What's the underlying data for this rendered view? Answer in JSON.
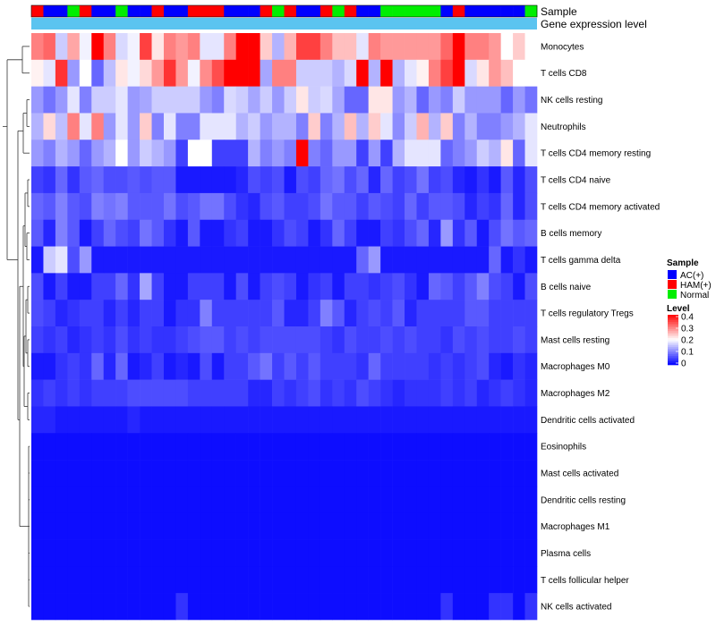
{
  "chart_data": {
    "type": "heatmap",
    "annotation_labels": [
      "Sample",
      "Gene expression level"
    ],
    "sample_groups": [
      "HAM(+)",
      "AC(+)",
      "AC(+)",
      "Normal",
      "HAM(+)",
      "AC(+)",
      "AC(+)",
      "Normal",
      "AC(+)",
      "AC(+)",
      "HAM(+)",
      "AC(+)",
      "AC(+)",
      "HAM(+)",
      "HAM(+)",
      "HAM(+)",
      "AC(+)",
      "AC(+)",
      "AC(+)",
      "HAM(+)",
      "Normal",
      "HAM(+)",
      "AC(+)",
      "AC(+)",
      "HAM(+)",
      "Normal",
      "HAM(+)",
      "AC(+)",
      "AC(+)",
      "Normal",
      "Normal",
      "Normal",
      "Normal",
      "Normal",
      "AC(+)",
      "HAM(+)",
      "AC(+)",
      "AC(+)",
      "AC(+)",
      "AC(+)",
      "AC(+)",
      "Normal"
    ],
    "rows": [
      "Monocytes",
      "T cells CD8",
      "NK cells resting",
      "Neutrophils",
      "T cells CD4 memory resting",
      "T cells CD4 naive",
      "T cells CD4 memory activated",
      "B cells memory",
      "T cells gamma delta",
      "B cells naive",
      "T cells regulatory  Tregs",
      "Mast cells resting",
      "Macrophages M0",
      "Macrophages M2",
      "Dendritic cells activated",
      "Eosinophils",
      "Mast cells activated",
      "Dendritic cells resting",
      "Macrophages M1",
      "Plasma cells",
      "T cells follicular helper",
      "NK cells activated"
    ],
    "values": [
      [
        0.3,
        0.32,
        0.16,
        0.27,
        0.19,
        0.4,
        0.3,
        0.17,
        0.19,
        0.35,
        0.22,
        0.3,
        0.28,
        0.3,
        0.18,
        0.18,
        0.3,
        0.4,
        0.4,
        0.24,
        0.14,
        0.26,
        0.35,
        0.35,
        0.3,
        0.25,
        0.25,
        0.18,
        0.3,
        0.28,
        0.28,
        0.28,
        0.28,
        0.28,
        0.32,
        0.4,
        0.3,
        0.3,
        0.28,
        0.2,
        0.24,
        0.2
      ],
      [
        0.21,
        0.18,
        0.36,
        0.12,
        0.2,
        0.08,
        0.15,
        0.22,
        0.19,
        0.23,
        0.28,
        0.36,
        0.28,
        0.19,
        0.29,
        0.34,
        0.4,
        0.4,
        0.4,
        0.13,
        0.3,
        0.3,
        0.16,
        0.16,
        0.16,
        0.14,
        0.17,
        0.4,
        0.14,
        0.4,
        0.14,
        0.18,
        0.21,
        0.3,
        0.35,
        0.4,
        0.17,
        0.22,
        0.28,
        0.25,
        0.2,
        0.2
      ],
      [
        0.12,
        0.09,
        0.12,
        0.18,
        0.1,
        0.16,
        0.16,
        0.18,
        0.12,
        0.13,
        0.16,
        0.16,
        0.16,
        0.16,
        0.12,
        0.1,
        0.17,
        0.16,
        0.13,
        0.16,
        0.12,
        0.16,
        0.22,
        0.16,
        0.17,
        0.13,
        0.08,
        0.08,
        0.22,
        0.22,
        0.12,
        0.14,
        0.08,
        0.12,
        0.1,
        0.16,
        0.12,
        0.12,
        0.12,
        0.08,
        0.12,
        0.09
      ],
      [
        0.14,
        0.23,
        0.15,
        0.3,
        0.18,
        0.3,
        0.12,
        0.18,
        0.12,
        0.24,
        0.1,
        0.18,
        0.1,
        0.1,
        0.18,
        0.18,
        0.18,
        0.14,
        0.16,
        0.12,
        0.14,
        0.14,
        0.1,
        0.24,
        0.1,
        0.14,
        0.25,
        0.14,
        0.24,
        0.18,
        0.11,
        0.16,
        0.26,
        0.14,
        0.24,
        0.1,
        0.14,
        0.1,
        0.1,
        0.12,
        0.14,
        0.18
      ],
      [
        0.12,
        0.1,
        0.14,
        0.12,
        0.08,
        0.12,
        0.14,
        0.2,
        0.12,
        0.16,
        0.14,
        0.12,
        0.05,
        0.2,
        0.2,
        0.05,
        0.05,
        0.05,
        0.14,
        0.1,
        0.12,
        0.1,
        0.4,
        0.1,
        0.08,
        0.12,
        0.12,
        0.05,
        0.12,
        0.05,
        0.14,
        0.18,
        0.18,
        0.18,
        0.08,
        0.1,
        0.12,
        0.16,
        0.14,
        0.22,
        0.08,
        0.18
      ],
      [
        0.05,
        0.04,
        0.08,
        0.04,
        0.07,
        0.08,
        0.06,
        0.06,
        0.07,
        0.06,
        0.07,
        0.07,
        0.02,
        0.02,
        0.02,
        0.02,
        0.02,
        0.03,
        0.06,
        0.05,
        0.06,
        0.02,
        0.06,
        0.05,
        0.08,
        0.09,
        0.06,
        0.08,
        0.03,
        0.08,
        0.05,
        0.06,
        0.09,
        0.05,
        0.06,
        0.03,
        0.02,
        0.04,
        0.02,
        0.07,
        0.03,
        0.06
      ],
      [
        0.08,
        0.07,
        0.1,
        0.07,
        0.06,
        0.1,
        0.09,
        0.1,
        0.07,
        0.07,
        0.07,
        0.09,
        0.06,
        0.07,
        0.09,
        0.09,
        0.06,
        0.04,
        0.03,
        0.06,
        0.07,
        0.05,
        0.05,
        0.06,
        0.09,
        0.07,
        0.07,
        0.05,
        0.07,
        0.06,
        0.05,
        0.08,
        0.05,
        0.07,
        0.07,
        0.06,
        0.03,
        0.05,
        0.04,
        0.08,
        0.03,
        0.06
      ],
      [
        0.07,
        0.03,
        0.1,
        0.07,
        0.02,
        0.05,
        0.08,
        0.06,
        0.05,
        0.09,
        0.07,
        0.04,
        0.02,
        0.07,
        0.02,
        0.02,
        0.04,
        0.05,
        0.02,
        0.02,
        0.04,
        0.06,
        0.05,
        0.02,
        0.04,
        0.08,
        0.05,
        0.02,
        0.02,
        0.05,
        0.04,
        0.06,
        0.08,
        0.03,
        0.12,
        0.04,
        0.07,
        0.02,
        0.06,
        0.09,
        0.07,
        0.08
      ],
      [
        0.02,
        0.16,
        0.18,
        0.06,
        0.12,
        0.02,
        0.02,
        0.02,
        0.02,
        0.02,
        0.02,
        0.02,
        0.02,
        0.02,
        0.02,
        0.02,
        0.02,
        0.02,
        0.02,
        0.02,
        0.02,
        0.02,
        0.02,
        0.02,
        0.02,
        0.02,
        0.02,
        0.08,
        0.12,
        0.02,
        0.02,
        0.02,
        0.02,
        0.02,
        0.02,
        0.02,
        0.02,
        0.02,
        0.08,
        0.02,
        0.04,
        0.02
      ],
      [
        0.06,
        0.02,
        0.05,
        0.02,
        0.02,
        0.05,
        0.05,
        0.08,
        0.04,
        0.13,
        0.05,
        0.02,
        0.02,
        0.05,
        0.05,
        0.05,
        0.02,
        0.06,
        0.02,
        0.05,
        0.06,
        0.05,
        0.02,
        0.04,
        0.05,
        0.02,
        0.05,
        0.05,
        0.04,
        0.05,
        0.06,
        0.04,
        0.02,
        0.08,
        0.07,
        0.05,
        0.07,
        0.1,
        0.06,
        0.05,
        0.02,
        0.06
      ],
      [
        0.06,
        0.05,
        0.03,
        0.04,
        0.05,
        0.05,
        0.03,
        0.05,
        0.03,
        0.05,
        0.05,
        0.02,
        0.04,
        0.04,
        0.1,
        0.05,
        0.05,
        0.05,
        0.05,
        0.05,
        0.07,
        0.03,
        0.03,
        0.05,
        0.1,
        0.07,
        0.03,
        0.05,
        0.06,
        0.05,
        0.07,
        0.03,
        0.05,
        0.05,
        0.05,
        0.05,
        0.07,
        0.07,
        0.05,
        0.05,
        0.05,
        0.05
      ],
      [
        0.05,
        0.04,
        0.05,
        0.03,
        0.04,
        0.05,
        0.04,
        0.06,
        0.04,
        0.05,
        0.04,
        0.04,
        0.05,
        0.06,
        0.07,
        0.07,
        0.05,
        0.06,
        0.05,
        0.06,
        0.06,
        0.06,
        0.06,
        0.06,
        0.05,
        0.04,
        0.06,
        0.05,
        0.05,
        0.06,
        0.05,
        0.06,
        0.05,
        0.05,
        0.04,
        0.06,
        0.05,
        0.06,
        0.05,
        0.05,
        0.06,
        0.05
      ],
      [
        0.02,
        0.02,
        0.04,
        0.05,
        0.04,
        0.08,
        0.03,
        0.08,
        0.02,
        0.03,
        0.05,
        0.02,
        0.03,
        0.02,
        0.06,
        0.02,
        0.05,
        0.05,
        0.07,
        0.09,
        0.05,
        0.07,
        0.05,
        0.07,
        0.05,
        0.05,
        0.05,
        0.04,
        0.08,
        0.05,
        0.05,
        0.05,
        0.05,
        0.04,
        0.05,
        0.04,
        0.05,
        0.06,
        0.03,
        0.02,
        0.04,
        0.03
      ],
      [
        0.04,
        0.05,
        0.04,
        0.05,
        0.04,
        0.05,
        0.05,
        0.05,
        0.06,
        0.06,
        0.06,
        0.06,
        0.06,
        0.05,
        0.05,
        0.05,
        0.05,
        0.05,
        0.03,
        0.03,
        0.05,
        0.04,
        0.05,
        0.06,
        0.04,
        0.05,
        0.04,
        0.06,
        0.05,
        0.04,
        0.03,
        0.04,
        0.04,
        0.04,
        0.05,
        0.04,
        0.05,
        0.03,
        0.04,
        0.05,
        0.04,
        0.03
      ],
      [
        0.03,
        0.03,
        0.02,
        0.02,
        0.02,
        0.02,
        0.02,
        0.02,
        0.03,
        0.02,
        0.02,
        0.02,
        0.02,
        0.02,
        0.02,
        0.02,
        0.02,
        0.02,
        0.02,
        0.02,
        0.02,
        0.02,
        0.02,
        0.02,
        0.02,
        0.02,
        0.02,
        0.02,
        0.02,
        0.02,
        0.02,
        0.02,
        0.02,
        0.02,
        0.02,
        0.02,
        0.02,
        0.02,
        0.02,
        0.02,
        0.02,
        0.02
      ],
      [
        0.01,
        0.01,
        0.01,
        0.01,
        0.01,
        0.01,
        0.01,
        0.01,
        0.01,
        0.01,
        0.01,
        0.01,
        0.01,
        0.01,
        0.01,
        0.01,
        0.01,
        0.01,
        0.01,
        0.01,
        0.01,
        0.01,
        0.01,
        0.01,
        0.01,
        0.01,
        0.01,
        0.01,
        0.01,
        0.01,
        0.01,
        0.01,
        0.01,
        0.01,
        0.01,
        0.01,
        0.01,
        0.01,
        0.01,
        0.01,
        0.01,
        0.01
      ],
      [
        0.01,
        0.01,
        0.01,
        0.01,
        0.01,
        0.01,
        0.01,
        0.01,
        0.01,
        0.01,
        0.01,
        0.01,
        0.01,
        0.01,
        0.01,
        0.01,
        0.01,
        0.01,
        0.01,
        0.01,
        0.01,
        0.01,
        0.01,
        0.01,
        0.01,
        0.01,
        0.01,
        0.01,
        0.01,
        0.01,
        0.01,
        0.01,
        0.01,
        0.01,
        0.01,
        0.01,
        0.01,
        0.01,
        0.01,
        0.01,
        0.01,
        0.01
      ],
      [
        0.01,
        0.01,
        0.01,
        0.01,
        0.01,
        0.01,
        0.01,
        0.01,
        0.01,
        0.01,
        0.01,
        0.01,
        0.01,
        0.01,
        0.01,
        0.01,
        0.01,
        0.01,
        0.01,
        0.01,
        0.01,
        0.01,
        0.01,
        0.01,
        0.01,
        0.01,
        0.01,
        0.01,
        0.01,
        0.01,
        0.01,
        0.01,
        0.01,
        0.01,
        0.01,
        0.01,
        0.01,
        0.01,
        0.01,
        0.01,
        0.01,
        0.01
      ],
      [
        0.01,
        0.01,
        0.01,
        0.01,
        0.01,
        0.01,
        0.01,
        0.01,
        0.01,
        0.01,
        0.01,
        0.01,
        0.01,
        0.01,
        0.01,
        0.01,
        0.01,
        0.01,
        0.01,
        0.01,
        0.01,
        0.01,
        0.01,
        0.01,
        0.01,
        0.01,
        0.01,
        0.01,
        0.01,
        0.01,
        0.01,
        0.01,
        0.01,
        0.01,
        0.01,
        0.01,
        0.01,
        0.01,
        0.01,
        0.01,
        0.01,
        0.01
      ],
      [
        0.01,
        0.01,
        0.01,
        0.01,
        0.01,
        0.01,
        0.01,
        0.01,
        0.01,
        0.01,
        0.01,
        0.01,
        0.01,
        0.01,
        0.01,
        0.01,
        0.01,
        0.01,
        0.01,
        0.01,
        0.01,
        0.01,
        0.01,
        0.01,
        0.01,
        0.01,
        0.01,
        0.01,
        0.01,
        0.01,
        0.01,
        0.01,
        0.01,
        0.01,
        0.01,
        0.01,
        0.01,
        0.01,
        0.01,
        0.01,
        0.01,
        0.01
      ],
      [
        0.01,
        0.01,
        0.01,
        0.01,
        0.01,
        0.01,
        0.01,
        0.01,
        0.01,
        0.01,
        0.01,
        0.01,
        0.01,
        0.01,
        0.01,
        0.01,
        0.01,
        0.01,
        0.01,
        0.01,
        0.01,
        0.01,
        0.01,
        0.01,
        0.01,
        0.01,
        0.01,
        0.01,
        0.01,
        0.01,
        0.01,
        0.01,
        0.01,
        0.01,
        0.01,
        0.01,
        0.01,
        0.01,
        0.01,
        0.01,
        0.01,
        0.01
      ],
      [
        0.01,
        0.01,
        0.01,
        0.01,
        0.01,
        0.01,
        0.01,
        0.01,
        0.01,
        0.01,
        0.01,
        0.01,
        0.04,
        0.01,
        0.01,
        0.01,
        0.01,
        0.01,
        0.01,
        0.01,
        0.01,
        0.01,
        0.01,
        0.01,
        0.01,
        0.01,
        0.01,
        0.01,
        0.01,
        0.01,
        0.01,
        0.01,
        0.01,
        0.01,
        0.04,
        0.01,
        0.01,
        0.01,
        0.04,
        0.04,
        0.01,
        0.04
      ]
    ],
    "legend_sample": {
      "title": "Sample",
      "entries": [
        {
          "label": "AC(+)",
          "color": "#0000ff"
        },
        {
          "label": "HAM(+)",
          "color": "#ff0000"
        },
        {
          "label": "Normal",
          "color": "#00ee00"
        }
      ]
    },
    "legend_level": {
      "title": "Level",
      "ticks": [
        "0.4",
        "0.3",
        "0.2",
        "0.1",
        "0"
      ],
      "range": [
        0,
        0.4
      ]
    },
    "expression_bar_color": "#5bc4f0",
    "colors": {
      "low": "#0000ff",
      "mid": "#ffffff",
      "high": "#ff0000"
    }
  }
}
